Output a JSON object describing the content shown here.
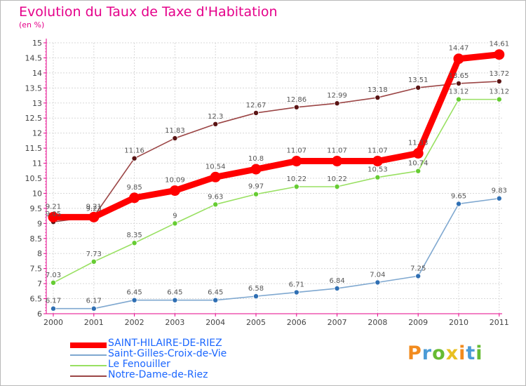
{
  "chart_data": {
    "type": "line",
    "title": "Evolution du Taux de Taxe d'Habitation",
    "subtitle": "(en %)",
    "x": [
      "2000",
      "2001",
      "2002",
      "2003",
      "2004",
      "2005",
      "2006",
      "2007",
      "2008",
      "2009",
      "2010",
      "2011"
    ],
    "ylim": [
      6,
      15
    ],
    "yticks": [
      "6",
      "6.5",
      "7",
      "7.5",
      "8",
      "8.5",
      "9",
      "9.5",
      "10",
      "10.5",
      "11",
      "11.5",
      "12",
      "12.5",
      "13",
      "13.5",
      "14",
      "14.5",
      "15"
    ],
    "grid": true,
    "legend_position": "bottom-left",
    "series": [
      {
        "name": "SAINT-HILAIRE-DE-RIEZ",
        "color": "#ff0000",
        "point_color": "#ff0000",
        "values": [
          9.21,
          9.21,
          9.85,
          10.09,
          10.54,
          10.8,
          11.07,
          11.07,
          11.07,
          11.33,
          14.47,
          14.61
        ],
        "labels": [
          "9.21",
          "9.21",
          "9.85",
          "10.09",
          "10.54",
          "10.8",
          "11.07",
          "11.07",
          "11.07",
          "11.33",
          "14.47",
          "14.61"
        ]
      },
      {
        "name": "Saint-Gilles-Croix-de-Vie",
        "color": "#7fa8d0",
        "point_color": "#2f6fb3",
        "values": [
          6.17,
          6.17,
          6.45,
          6.45,
          6.45,
          6.58,
          6.71,
          6.84,
          7.04,
          7.25,
          9.65,
          9.83
        ],
        "labels": [
          "6.17",
          "6.17",
          "6.45",
          "6.45",
          "6.45",
          "6.58",
          "6.71",
          "6.84",
          "7.04",
          "7.25",
          "9.65",
          "9.83"
        ]
      },
      {
        "name": "Le Fenouiller",
        "color": "#99e062",
        "point_color": "#66cc33",
        "values": [
          7.03,
          7.73,
          8.35,
          9.0,
          9.63,
          9.97,
          10.22,
          10.22,
          10.53,
          10.74,
          13.12,
          13.12
        ],
        "labels": [
          "7.03",
          "7.73",
          "8.35",
          "9",
          "9.63",
          "9.97",
          "10.22",
          "10.22",
          "10.53",
          "10.74",
          "13.12",
          "13.12"
        ]
      },
      {
        "name": "Notre-Dame-de-Riez",
        "color": "#9b4545",
        "point_color": "#5a1414",
        "values": [
          9.05,
          9.23,
          11.16,
          11.83,
          12.3,
          12.67,
          12.86,
          12.99,
          13.18,
          13.51,
          13.65,
          13.72
        ],
        "labels": [
          "9.05",
          "9.23",
          "11.16",
          "11.83",
          "12.3",
          "12.67",
          "12.86",
          "12.99",
          "13.18",
          "13.51",
          "13.65",
          "13.72"
        ]
      }
    ]
  },
  "logo": {
    "text": "Proxiti",
    "colors": [
      "#f28b1e",
      "#4b9bd6",
      "#66bb33",
      "#e8c021",
      "#f28b1e",
      "#4b9bd6",
      "#66bb33"
    ]
  }
}
